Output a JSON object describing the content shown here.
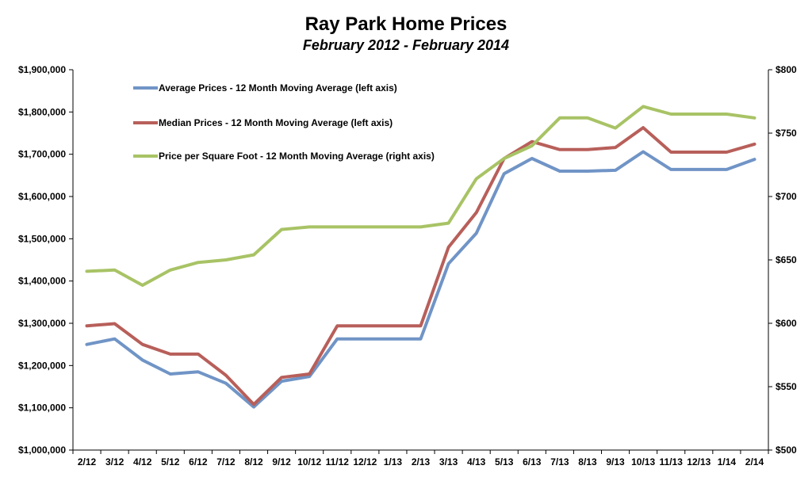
{
  "chart_data": {
    "type": "line",
    "title": "Ray Park Home Prices",
    "subtitle": "February 2012 - February 2014",
    "categories": [
      "2/12",
      "3/12",
      "4/12",
      "5/12",
      "6/12",
      "7/12",
      "8/12",
      "9/12",
      "10/12",
      "11/12",
      "12/12",
      "1/13",
      "2/13",
      "3/13",
      "4/13",
      "5/13",
      "6/13",
      "7/13",
      "8/13",
      "9/13",
      "10/13",
      "11/13",
      "12/13",
      "1/14",
      "2/14"
    ],
    "left_axis": {
      "ylim": [
        1000000,
        1900000
      ],
      "ticks": [
        1000000,
        1100000,
        1200000,
        1300000,
        1400000,
        1500000,
        1600000,
        1700000,
        1800000,
        1900000
      ],
      "tick_labels": [
        "$1,000,000",
        "$1,100,000",
        "$1,200,000",
        "$1,300,000",
        "$1,400,000",
        "$1,500,000",
        "$1,600,000",
        "$1,700,000",
        "$1,800,000",
        "$1,900,000"
      ]
    },
    "right_axis": {
      "ylim": [
        500,
        800
      ],
      "ticks": [
        500,
        550,
        600,
        650,
        700,
        750,
        800
      ],
      "tick_labels": [
        "$500",
        "$550",
        "$600",
        "$650",
        "$700",
        "$750",
        "$800"
      ]
    },
    "grid": false,
    "legend_position": "top-left",
    "series": [
      {
        "name": "Average Prices - 12 Month Moving Average (left axis)",
        "axis": "left",
        "color": "#7094c6",
        "values": [
          1250000,
          1263000,
          1213000,
          1180000,
          1185000,
          1158000,
          1102000,
          1163000,
          1174000,
          1263000,
          1263000,
          1263000,
          1263000,
          1441000,
          1513000,
          1654000,
          1690000,
          1660000,
          1660000,
          1662000,
          1706000,
          1664000,
          1664000,
          1664000,
          1688000
        ]
      },
      {
        "name": "Median Prices - 12 Month Moving Average (left axis)",
        "axis": "left",
        "color": "#b85f5a",
        "values": [
          1294000,
          1299000,
          1250000,
          1227000,
          1227000,
          1177000,
          1108000,
          1172000,
          1180000,
          1294000,
          1294000,
          1294000,
          1294000,
          1480000,
          1562000,
          1690000,
          1730000,
          1711000,
          1711000,
          1716000,
          1763000,
          1705000,
          1705000,
          1705000,
          1724000
        ]
      },
      {
        "name": "Price per Square Foot - 12 Month Moving Average (right axis)",
        "axis": "right",
        "color": "#a8c365",
        "values": [
          641,
          642,
          630,
          642,
          648,
          650,
          654,
          674,
          676,
          676,
          676,
          676,
          676,
          679,
          714,
          730,
          740,
          762,
          762,
          754,
          771,
          765,
          765,
          765,
          762
        ]
      }
    ]
  }
}
